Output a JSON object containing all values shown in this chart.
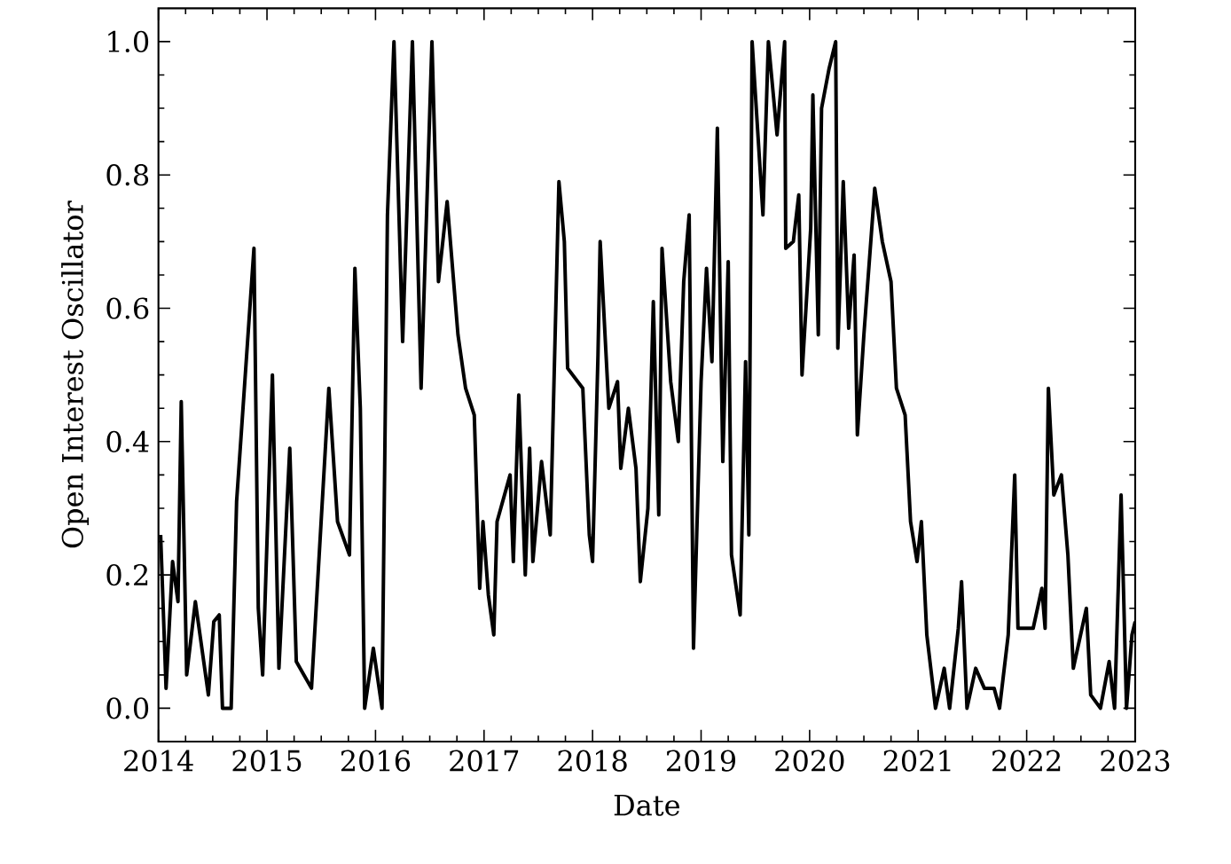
{
  "chart_data": {
    "type": "line",
    "xlabel": "Date",
    "ylabel": "Open Interest Oscillator",
    "xlim": [
      2014,
      2023
    ],
    "ylim": [
      -0.05,
      1.05
    ],
    "xticks": [
      2014,
      2015,
      2016,
      2017,
      2018,
      2019,
      2020,
      2021,
      2022,
      2023
    ],
    "yticks": [
      {
        "value": 0,
        "label": "0.0"
      },
      {
        "value": 0.2,
        "label": "0.2"
      },
      {
        "value": 0.4,
        "label": "0.4"
      },
      {
        "value": 0.6,
        "label": "0.6"
      },
      {
        "value": 0.8,
        "label": "0.8"
      },
      {
        "value": 1,
        "label": "1.0"
      }
    ],
    "series": [
      {
        "color": "#000000",
        "x": [
          2014.02,
          2014.07,
          2014.13,
          2014.18,
          2014.21,
          2014.26,
          2014.34,
          2014.46,
          2014.51,
          2014.56,
          2014.59,
          2014.67,
          2014.72,
          2014.88,
          2014.92,
          2014.96,
          2015.05,
          2015.11,
          2015.21,
          2015.27,
          2015.41,
          2015.57,
          2015.65,
          2015.76,
          2015.81,
          2015.86,
          2015.9,
          2015.98,
          2016.06,
          2016.11,
          2016.17,
          2016.25,
          2016.34,
          2016.42,
          2016.52,
          2016.58,
          2016.66,
          2016.76,
          2016.83,
          2016.91,
          2016.96,
          2016.99,
          2017.04,
          2017.09,
          2017.12,
          2017.24,
          2017.27,
          2017.32,
          2017.38,
          2017.42,
          2017.45,
          2017.53,
          2017.61,
          2017.69,
          2017.74,
          2017.77,
          2017.91,
          2017.97,
          2018.0,
          2018.05,
          2018.07,
          2018.15,
          2018.23,
          2018.26,
          2018.33,
          2018.4,
          2018.44,
          2018.51,
          2018.56,
          2018.61,
          2018.64,
          2018.72,
          2018.79,
          2018.84,
          2018.89,
          2018.93,
          2019.0,
          2019.05,
          2019.1,
          2019.15,
          2019.2,
          2019.25,
          2019.28,
          2019.36,
          2019.41,
          2019.44,
          2019.47,
          2019.57,
          2019.62,
          2019.7,
          2019.77,
          2019.78,
          2019.85,
          2019.9,
          2019.93,
          2020.01,
          2020.03,
          2020.08,
          2020.11,
          2020.18,
          2020.24,
          2020.26,
          2020.31,
          2020.36,
          2020.41,
          2020.44,
          2020.5,
          2020.6,
          2020.67,
          2020.75,
          2020.8,
          2020.88,
          2020.93,
          2020.99,
          2021.03,
          2021.08,
          2021.16,
          2021.24,
          2021.29,
          2021.37,
          2021.4,
          2021.45,
          2021.53,
          2021.61,
          2021.7,
          2021.75,
          2021.83,
          2021.89,
          2021.92,
          2022.06,
          2022.14,
          2022.17,
          2022.2,
          2022.25,
          2022.32,
          2022.38,
          2022.43,
          2022.55,
          2022.59,
          2022.68,
          2022.76,
          2022.81,
          2022.87,
          2022.92,
          2022.97,
          2023.0
        ],
        "values": [
          0.26,
          0.03,
          0.22,
          0.16,
          0.46,
          0.05,
          0.16,
          0.02,
          0.13,
          0.14,
          0,
          0,
          0.31,
          0.69,
          0.15,
          0.05,
          0.5,
          0.06,
          0.39,
          0.07,
          0.03,
          0.48,
          0.28,
          0.23,
          0.66,
          0.45,
          0,
          0.09,
          0,
          0.74,
          1.0,
          0.55,
          1.0,
          0.48,
          1.0,
          0.64,
          0.76,
          0.56,
          0.48,
          0.44,
          0.18,
          0.28,
          0.17,
          0.11,
          0.28,
          0.35,
          0.22,
          0.47,
          0.2,
          0.39,
          0.22,
          0.37,
          0.26,
          0.79,
          0.7,
          0.51,
          0.48,
          0.26,
          0.22,
          0.53,
          0.7,
          0.45,
          0.49,
          0.36,
          0.45,
          0.36,
          0.19,
          0.3,
          0.61,
          0.29,
          0.69,
          0.49,
          0.4,
          0.64,
          0.74,
          0.09,
          0.49,
          0.66,
          0.52,
          0.87,
          0.37,
          0.67,
          0.23,
          0.14,
          0.52,
          0.26,
          1.0,
          0.74,
          1.0,
          0.86,
          1.0,
          0.69,
          0.7,
          0.77,
          0.5,
          0.72,
          0.92,
          0.56,
          0.9,
          0.96,
          1.0,
          0.54,
          0.79,
          0.57,
          0.68,
          0.41,
          0.56,
          0.78,
          0.7,
          0.64,
          0.48,
          0.44,
          0.28,
          0.22,
          0.28,
          0.11,
          0,
          0.06,
          0,
          0.12,
          0.19,
          0,
          0.06,
          0.03,
          0.03,
          0,
          0.11,
          0.35,
          0.12,
          0.12,
          0.18,
          0.12,
          0.48,
          0.32,
          0.35,
          0.23,
          0.06,
          0.15,
          0.02,
          0,
          0.07,
          0,
          0.32,
          0,
          0.11,
          0.13
        ]
      }
    ]
  }
}
